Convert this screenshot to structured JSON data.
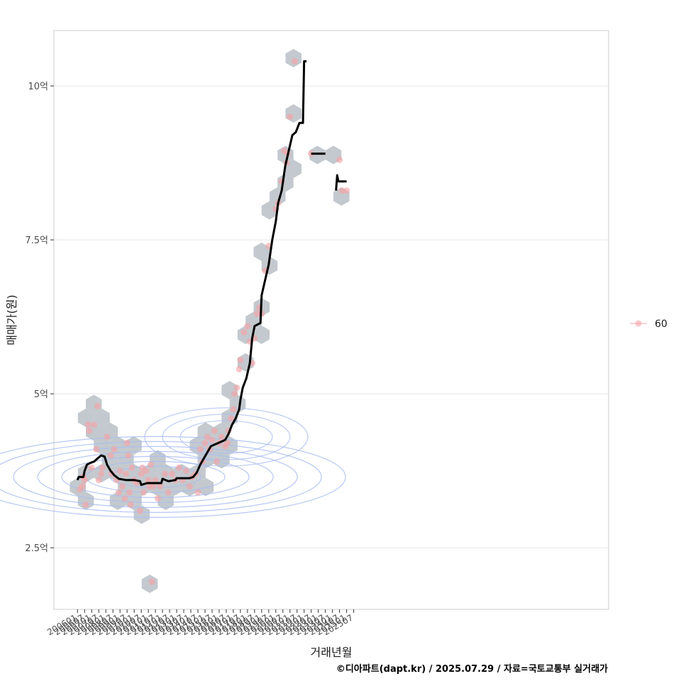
{
  "chart_data": {
    "type": "scatter",
    "xlabel": "거래년월",
    "ylabel": "매매가(원)",
    "caption": "©디아파트(dapt.kr) / 2025.07.29 / 자료=국토교통부 실거래가",
    "x_tick_labels": [
      "200601",
      "200607",
      "200701",
      "200707",
      "200801",
      "200807",
      "200901",
      "200907",
      "201001",
      "201007",
      "201101",
      "201107",
      "201201",
      "201207",
      "201301",
      "201307",
      "201401",
      "201407",
      "201501",
      "201507",
      "201601",
      "201607",
      "201701",
      "201707",
      "201801",
      "201807",
      "201901",
      "201907",
      "202001",
      "202007",
      "202101",
      "202107",
      "202201",
      "202207",
      "202301",
      "202307",
      "202401",
      "202407",
      "202501",
      "202507"
    ],
    "y_ticks": [
      {
        "value": 2.5,
        "label": "2.5억"
      },
      {
        "value": 5,
        "label": "5억"
      },
      {
        "value": 7.5,
        "label": "7.5억"
      },
      {
        "value": 10,
        "label": "10억"
      }
    ],
    "ylim": [
      1.5,
      10.9
    ],
    "x_range_months": [
      -20,
      450
    ],
    "legend": {
      "position": "right",
      "entries": [
        {
          "name": "60",
          "color": "#f4a4a8"
        }
      ]
    },
    "colors": {
      "points": "#f4a4a8",
      "hexbin": "#bcc3c9",
      "contour": "#a9bdf0",
      "trend": "#000000",
      "panel_border": "#cccccc",
      "grid": "#e6e6e6"
    },
    "points": [
      [
        "200603",
        3.45
      ],
      [
        "200605",
        3.5
      ],
      [
        "200606",
        3.65
      ],
      [
        "200607",
        3.6
      ],
      [
        "200608",
        3.2
      ],
      [
        "200610",
        4.5
      ],
      [
        "200611",
        4.4
      ],
      [
        "200701",
        3.8
      ],
      [
        "200703",
        4.5
      ],
      [
        "200705",
        4.1
      ],
      [
        "200706",
        4.8
      ],
      [
        "200707",
        3.6
      ],
      [
        "200709",
        3.7
      ],
      [
        "200710",
        3.8
      ],
      [
        "200802",
        4.3
      ],
      [
        "200805",
        4.0
      ],
      [
        "200806",
        3.7
      ],
      [
        "200808",
        4.1
      ],
      [
        "200810",
        3.6
      ],
      [
        "200812",
        3.4
      ],
      [
        "200901",
        3.75
      ],
      [
        "200903",
        3.5
      ],
      [
        "200905",
        3.3
      ],
      [
        "200906",
        3.7
      ],
      [
        "200907",
        4.2
      ],
      [
        "200908",
        4.0
      ],
      [
        "200909",
        3.4
      ],
      [
        "200910",
        3.2
      ],
      [
        "200911",
        3.8
      ],
      [
        "201001",
        3.6
      ],
      [
        "201003",
        3.55
      ],
      [
        "201006",
        3.1
      ],
      [
        "201007",
        3.7
      ],
      [
        "201008",
        3.8
      ],
      [
        "201009",
        3.4
      ],
      [
        "201011",
        3.75
      ],
      [
        "201101",
        3.6
      ],
      [
        "201102",
        3.5
      ],
      [
        "201103",
        3.85
      ],
      [
        "201104",
        1.95
      ],
      [
        "201105",
        3.5
      ],
      [
        "201107",
        3.6
      ],
      [
        "201109",
        3.3
      ],
      [
        "201111",
        3.5
      ],
      [
        "201203",
        3.7
      ],
      [
        "201206",
        3.4
      ],
      [
        "201209",
        3.7
      ],
      [
        "201212",
        3.6
      ],
      [
        "201303",
        3.8
      ],
      [
        "201306",
        3.6
      ],
      [
        "201309",
        3.75
      ],
      [
        "201312",
        3.5
      ],
      [
        "201402",
        3.65
      ],
      [
        "201405",
        3.7
      ],
      [
        "201407",
        3.4
      ],
      [
        "201409",
        4.1
      ],
      [
        "201411",
        3.9
      ],
      [
        "201501",
        4.2
      ],
      [
        "201503",
        4.3
      ],
      [
        "201505",
        4.1
      ],
      [
        "201507",
        4.25
      ],
      [
        "201509",
        4.4
      ],
      [
        "201511",
        3.9
      ],
      [
        "201601",
        4.2
      ],
      [
        "201603",
        4.3
      ],
      [
        "201606",
        4.15
      ],
      [
        "201608",
        4.2
      ],
      [
        "201609",
        4.4
      ],
      [
        "201611",
        4.6
      ],
      [
        "201701",
        4.75
      ],
      [
        "201702",
        5.0
      ],
      [
        "201704",
        5.1
      ],
      [
        "201706",
        5.4
      ],
      [
        "201707",
        5.55
      ],
      [
        "201710",
        6.0
      ],
      [
        "201801",
        6.1
      ],
      [
        "201803",
        5.85
      ],
      [
        "201805",
        5.5
      ],
      [
        "201807",
        5.9
      ],
      [
        "201809",
        6.3
      ],
      [
        "201811",
        6.4
      ],
      [
        "201901",
        6.3
      ],
      [
        "201904",
        7.0
      ],
      [
        "201907",
        7.4
      ],
      [
        "202001",
        8.0
      ],
      [
        "202003",
        8.1
      ],
      [
        "202006",
        8.45
      ],
      [
        "202008",
        8.95
      ],
      [
        "202010",
        8.75
      ],
      [
        "202011",
        8.9
      ],
      [
        "202101",
        9.5
      ],
      [
        "202105",
        10.4
      ],
      [
        "202207",
        8.9
      ],
      [
        "202407",
        8.8
      ],
      [
        "202409",
        8.3
      ],
      [
        "202501",
        8.3
      ]
    ],
    "trend": [
      [
        "200601",
        3.6
      ],
      [
        "200602",
        3.65
      ],
      [
        "200606",
        3.65
      ],
      [
        "200607",
        3.75
      ],
      [
        "200609",
        3.85
      ],
      [
        "200612",
        3.88
      ],
      [
        "200703",
        3.9
      ],
      [
        "200706",
        3.95
      ],
      [
        "200709",
        4.0
      ],
      [
        "200712",
        3.98
      ],
      [
        "200802",
        3.85
      ],
      [
        "200805",
        3.75
      ],
      [
        "200808",
        3.68
      ],
      [
        "200812",
        3.62
      ],
      [
        "200906",
        3.6
      ],
      [
        "201001",
        3.6
      ],
      [
        "201006",
        3.58
      ],
      [
        "201007",
        3.52
      ],
      [
        "201012",
        3.55
      ],
      [
        "201106",
        3.55
      ],
      [
        "201112",
        3.55
      ],
      [
        "201201",
        3.62
      ],
      [
        "201206",
        3.58
      ],
      [
        "201212",
        3.6
      ],
      [
        "201301",
        3.63
      ],
      [
        "201312",
        3.63
      ],
      [
        "201403",
        3.65
      ],
      [
        "201406",
        3.72
      ],
      [
        "201409",
        3.85
      ],
      [
        "201412",
        3.95
      ],
      [
        "201503",
        4.05
      ],
      [
        "201506",
        4.15
      ],
      [
        "201512",
        4.2
      ],
      [
        "201606",
        4.25
      ],
      [
        "201609",
        4.35
      ],
      [
        "201612",
        4.5
      ],
      [
        "201703",
        4.6
      ],
      [
        "201706",
        4.75
      ],
      [
        "201707",
        4.9
      ],
      [
        "201709",
        5.1
      ],
      [
        "201712",
        5.25
      ],
      [
        "201803",
        5.5
      ],
      [
        "201805",
        5.9
      ],
      [
        "201807",
        6.1
      ],
      [
        "201812",
        6.15
      ],
      [
        "201901",
        6.6
      ],
      [
        "201904",
        6.85
      ],
      [
        "201907",
        7.1
      ],
      [
        "201910",
        7.5
      ],
      [
        "202001",
        7.8
      ],
      [
        "202003",
        8.1
      ],
      [
        "202006",
        8.3
      ],
      [
        "202009",
        8.7
      ],
      [
        "202012",
        8.95
      ],
      [
        "202103",
        9.2
      ],
      [
        "202106",
        9.25
      ],
      [
        "202109",
        9.4
      ],
      [
        "202112",
        9.4
      ],
      [
        "202201",
        10.4
      ],
      [
        "202203",
        10.4
      ]
    ],
    "trend_segments": [
      [
        [
          "202207",
          8.9
        ],
        [
          "202307",
          8.9
        ]
      ],
      [
        [
          "202404",
          8.3
        ],
        [
          "202405",
          8.55
        ],
        [
          "202406",
          8.45
        ],
        [
          "202501",
          8.45
        ]
      ]
    ]
  }
}
